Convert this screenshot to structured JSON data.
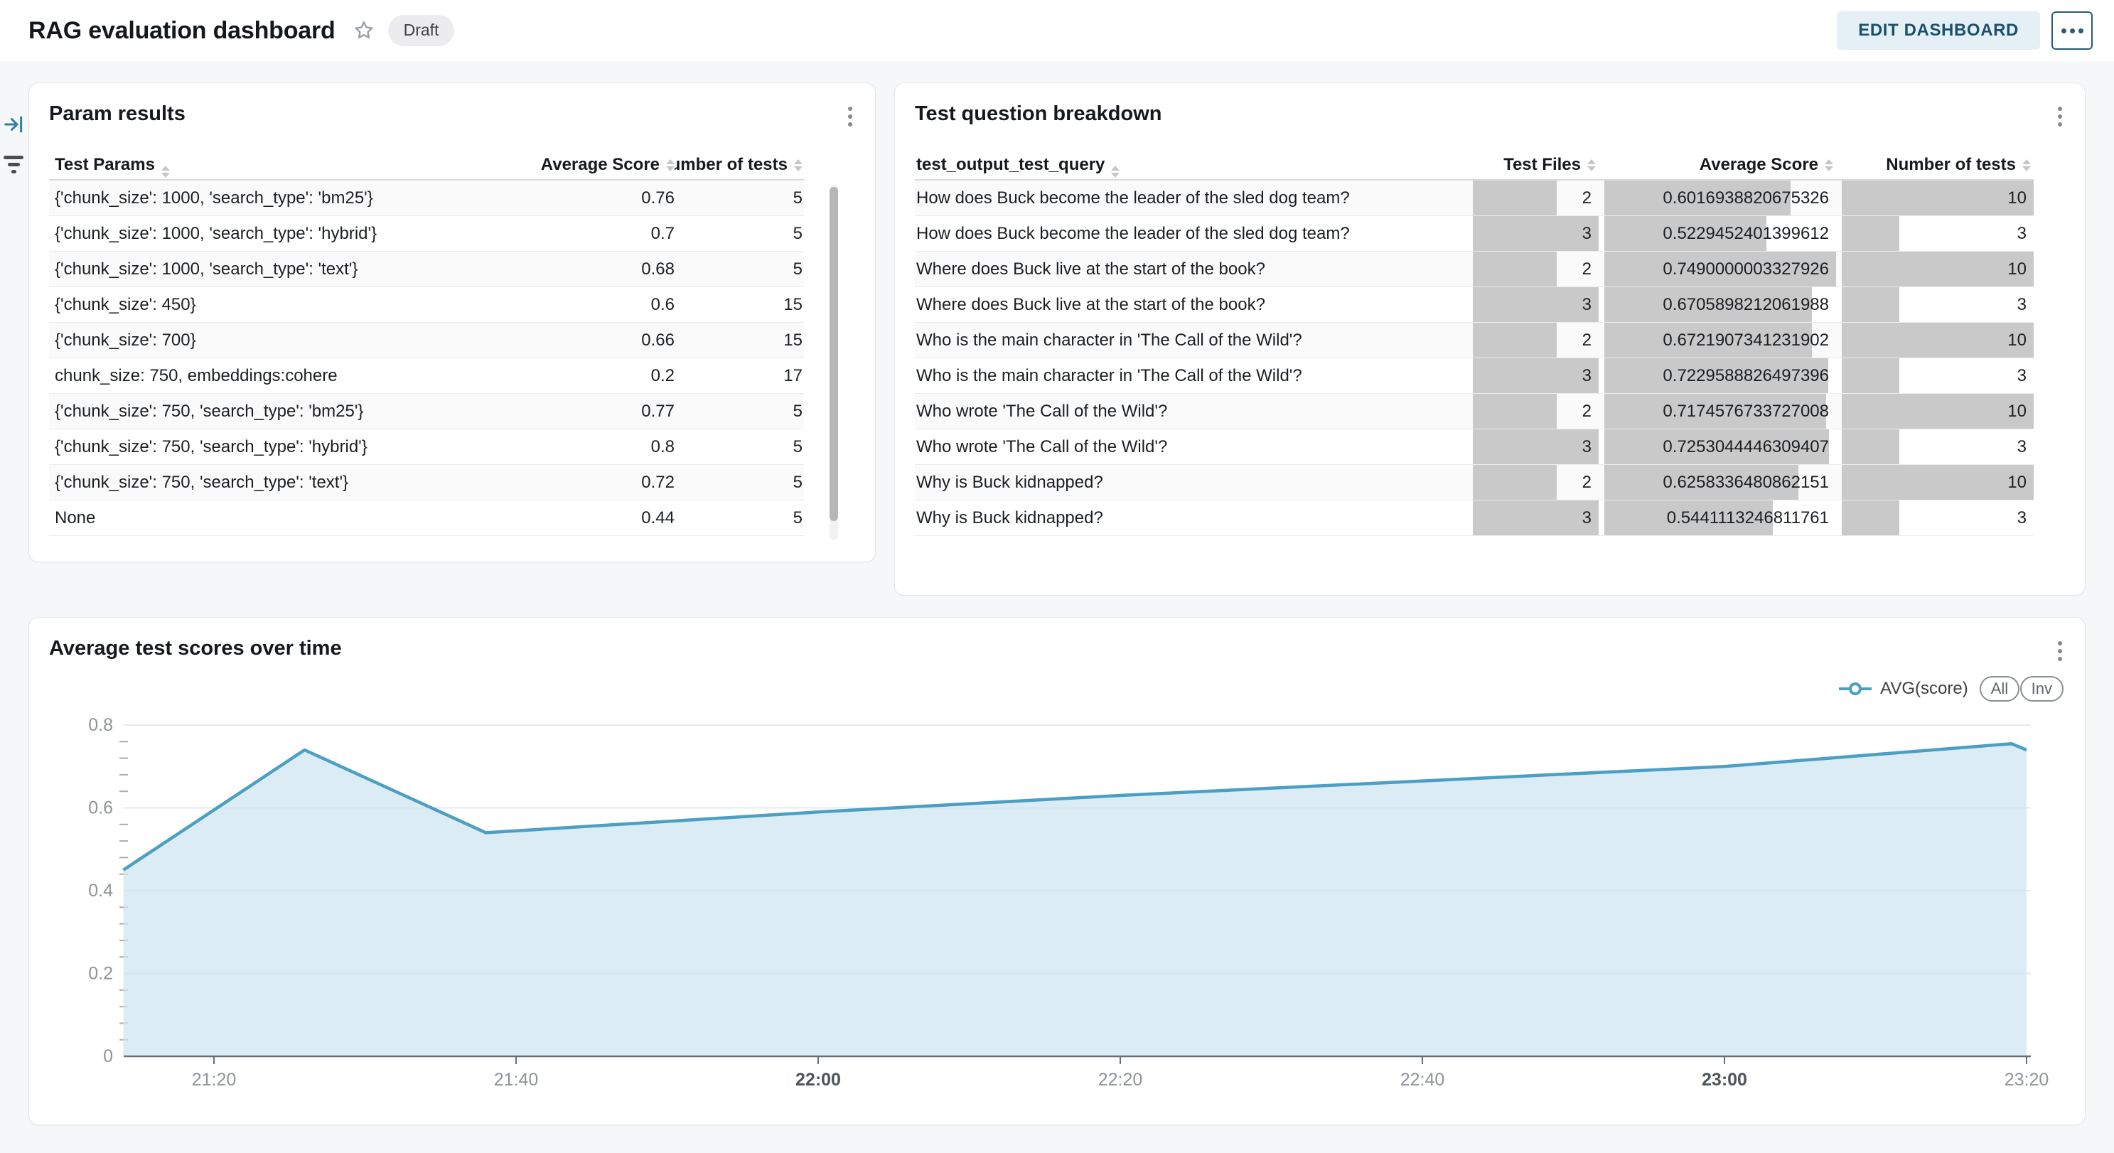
{
  "header": {
    "title": "RAG evaluation dashboard",
    "status_badge": "Draft",
    "edit_button": "EDIT DASHBOARD"
  },
  "param_results": {
    "title": "Param results",
    "columns": [
      "Test Params",
      "Average Score",
      "Number of tests"
    ],
    "rows": [
      {
        "params": "{'chunk_size': 1000, 'search_type': 'bm25'}",
        "avg_score": "0.76",
        "num_tests": "5"
      },
      {
        "params": "{'chunk_size': 1000, 'search_type': 'hybrid'}",
        "avg_score": "0.7",
        "num_tests": "5"
      },
      {
        "params": "{'chunk_size': 1000, 'search_type': 'text'}",
        "avg_score": "0.68",
        "num_tests": "5"
      },
      {
        "params": "{'chunk_size': 450}",
        "avg_score": "0.6",
        "num_tests": "15"
      },
      {
        "params": "{'chunk_size': 700}",
        "avg_score": "0.66",
        "num_tests": "15"
      },
      {
        "params": "chunk_size: 750, embeddings:cohere",
        "avg_score": "0.2",
        "num_tests": "17"
      },
      {
        "params": "{'chunk_size': 750, 'search_type': 'bm25'}",
        "avg_score": "0.77",
        "num_tests": "5"
      },
      {
        "params": "{'chunk_size': 750, 'search_type': 'hybrid'}",
        "avg_score": "0.8",
        "num_tests": "5"
      },
      {
        "params": "{'chunk_size': 750, 'search_type': 'text'}",
        "avg_score": "0.72",
        "num_tests": "5"
      },
      {
        "params": "None",
        "avg_score": "0.44",
        "num_tests": "5"
      }
    ]
  },
  "question_breakdown": {
    "title": "Test question breakdown",
    "columns": [
      "test_output_test_query",
      "Test Files",
      "Average Score",
      "Number of tests"
    ],
    "rows": [
      {
        "query": "How does Buck become the leader of the sled dog team?",
        "test_files": "2",
        "avg_score": "0.6016938820675326",
        "num_tests": "10"
      },
      {
        "query": "How does Buck become the leader of the sled dog team?",
        "test_files": "3",
        "avg_score": "0.5229452401399612",
        "num_tests": "3"
      },
      {
        "query": "Where does Buck live at the start of the book?",
        "test_files": "2",
        "avg_score": "0.7490000003327926",
        "num_tests": "10"
      },
      {
        "query": "Where does Buck live at the start of the book?",
        "test_files": "3",
        "avg_score": "0.6705898212061988",
        "num_tests": "3"
      },
      {
        "query": "Who is the main character in 'The Call of the Wild'?",
        "test_files": "2",
        "avg_score": "0.6721907341231902",
        "num_tests": "10"
      },
      {
        "query": "Who is the main character in 'The Call of the Wild'?",
        "test_files": "3",
        "avg_score": "0.7229588826497396",
        "num_tests": "3"
      },
      {
        "query": "Who wrote 'The Call of the Wild'?",
        "test_files": "2",
        "avg_score": "0.7174576733727008",
        "num_tests": "10"
      },
      {
        "query": "Who wrote 'The Call of the Wild'?",
        "test_files": "3",
        "avg_score": "0.7253044446309407",
        "num_tests": "3"
      },
      {
        "query": "Why is Buck kidnapped?",
        "test_files": "2",
        "avg_score": "0.6258336480862151",
        "num_tests": "10"
      },
      {
        "query": "Why is Buck kidnapped?",
        "test_files": "3",
        "avg_score": "0.5441113246811761",
        "num_tests": "3"
      }
    ]
  },
  "chart": {
    "title": "Average test scores over time",
    "legend": {
      "series_label": "AVG(score)",
      "all_button": "All",
      "inv_button": "Inv"
    }
  },
  "chart_data": {
    "type": "area",
    "title": "Average test scores over time",
    "series": [
      {
        "name": "AVG(score)",
        "x": [
          "21:14",
          "21:26",
          "21:38",
          "22:00",
          "22:20",
          "22:40",
          "23:00",
          "23:19",
          "23:20"
        ],
        "y": [
          0.45,
          0.74,
          0.54,
          0.59,
          0.63,
          0.665,
          0.7,
          0.755,
          0.74
        ]
      }
    ],
    "x_ticks": [
      "21:20",
      "21:40",
      "22:00",
      "22:20",
      "22:40",
      "23:00",
      "23:20"
    ],
    "bold_x_ticks": [
      "22:00",
      "23:00"
    ],
    "y_ticks": [
      0,
      0.2,
      0.4,
      0.6,
      0.8
    ],
    "y_minor_step": 0.04,
    "ylim": [
      0,
      0.8
    ],
    "grid": true,
    "legend_position": "top-right",
    "colors": {
      "line": "#4b9fc5",
      "fill": "#cfe4f0",
      "grid": "#e6eaf2",
      "axis": "#686e75",
      "tick_label": "#8f949a",
      "bold_tick_label": "#4e545b"
    }
  },
  "colors": {
    "accent_teal": "#1b506c",
    "edit_button_bg": "#e4f0f5",
    "data_bar": "#c9c9c9",
    "row_stripe": "#fafafa",
    "badge_bg": "#ececee"
  }
}
